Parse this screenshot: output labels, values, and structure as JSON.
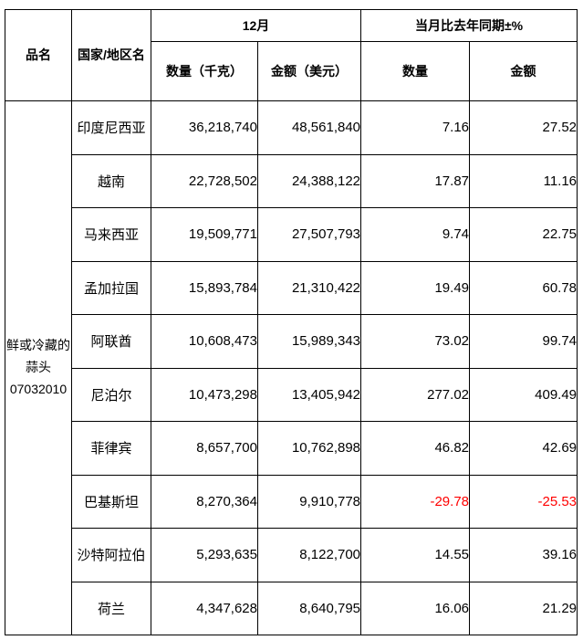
{
  "table": {
    "header": {
      "product_col": "品名",
      "country_col": "国家/地区名",
      "group_month": "12月",
      "group_yoy": "当月比去年同期±%",
      "qty_kg_col": "数量（千克）",
      "amount_usd_col": "金额（美元）",
      "qty_col": "数量",
      "amount_col": "金额"
    },
    "product": {
      "name": "鲜或冷藏的蒜头",
      "code": "07032010"
    },
    "rows": [
      {
        "country": "印度尼西亚",
        "qty": "36,218,740",
        "amount": "48,561,840",
        "qty_yoy": "7.16",
        "amount_yoy": "27.52"
      },
      {
        "country": "越南",
        "qty": "22,728,502",
        "amount": "24,388,122",
        "qty_yoy": "17.87",
        "amount_yoy": "11.16"
      },
      {
        "country": "马来西亚",
        "qty": "19,509,771",
        "amount": "27,507,793",
        "qty_yoy": "9.74",
        "amount_yoy": "22.75"
      },
      {
        "country": "孟加拉国",
        "qty": "15,893,784",
        "amount": "21,310,422",
        "qty_yoy": "19.49",
        "amount_yoy": "60.78"
      },
      {
        "country": "阿联酋",
        "qty": "10,608,473",
        "amount": "15,989,343",
        "qty_yoy": "73.02",
        "amount_yoy": "99.74"
      },
      {
        "country": "尼泊尔",
        "qty": "10,473,298",
        "amount": "13,405,942",
        "qty_yoy": "277.02",
        "amount_yoy": "409.49"
      },
      {
        "country": "菲律宾",
        "qty": "8,657,700",
        "amount": "10,762,898",
        "qty_yoy": "46.82",
        "amount_yoy": "42.69"
      },
      {
        "country": "巴基斯坦",
        "qty": "8,270,364",
        "amount": "9,910,778",
        "qty_yoy": "-29.78",
        "amount_yoy": "-25.53"
      },
      {
        "country": "沙特阿拉伯",
        "qty": "5,293,635",
        "amount": "8,122,700",
        "qty_yoy": "14.55",
        "amount_yoy": "39.16"
      },
      {
        "country": "荷兰",
        "qty": "4,347,628",
        "amount": "8,640,795",
        "qty_yoy": "16.06",
        "amount_yoy": "21.29"
      }
    ]
  },
  "colors": {
    "negative_value": "#ff0000",
    "text": "#000000",
    "border": "#000000",
    "background": "#ffffff"
  }
}
